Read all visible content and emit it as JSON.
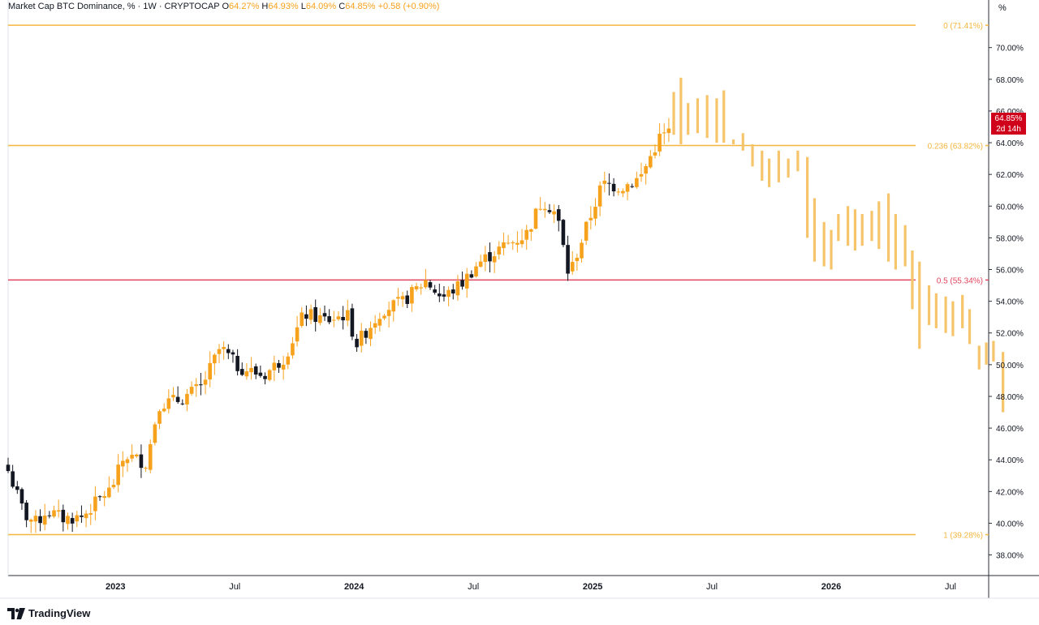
{
  "legend": {
    "title": "Market Cap BTC Dominance, % · 1W · CRYPTOCAP",
    "o_key": "O",
    "o_val": "64.27%",
    "h_key": "H",
    "h_val": "64.93%",
    "l_key": "L",
    "l_val": "64.09%",
    "c_key": "C",
    "c_val": "64.85%",
    "change": "+0.58 (+0.90%)"
  },
  "axis_unit": "%",
  "current": {
    "value": "64.85%",
    "countdown": "2d 14h"
  },
  "brand": "TradingView",
  "colors": {
    "up": "#f7a21c",
    "down": "#131722",
    "projection": "#f6c46a",
    "fib": "#f5b53f",
    "fib_mid": "#e0455b",
    "badge": "#d0021b",
    "grid": "#e0e3eb",
    "axis_text": "#131722"
  },
  "chart_data": {
    "type": "candlestick",
    "title": "Market Cap BTC Dominance, % · 1W · CRYPTOCAP",
    "ylim": [
      36.7,
      73.0
    ],
    "y_ticks": [
      "38.00%",
      "40.00%",
      "42.00%",
      "44.00%",
      "46.00%",
      "48.00%",
      "50.00%",
      "52.00%",
      "54.00%",
      "56.00%",
      "58.00%",
      "60.00%",
      "62.00%",
      "64.00%",
      "66.00%",
      "68.00%",
      "70.00%"
    ],
    "x_labels": [
      {
        "label": "2023",
        "t": 2023.0,
        "bold": true
      },
      {
        "label": "Jul",
        "t": 2023.5,
        "bold": false
      },
      {
        "label": "2024",
        "t": 2024.0,
        "bold": true
      },
      {
        "label": "Jul",
        "t": 2024.5,
        "bold": false
      },
      {
        "label": "2025",
        "t": 2025.0,
        "bold": true
      },
      {
        "label": "Jul",
        "t": 2025.5,
        "bold": false
      },
      {
        "label": "2026",
        "t": 2026.0,
        "bold": true
      },
      {
        "label": "Jul",
        "t": 2026.5,
        "bold": false
      }
    ],
    "xlim": [
      2022.55,
      2026.66
    ],
    "fib_levels": [
      {
        "label": "0 (71.41%)",
        "value": 71.41,
        "mid": false
      },
      {
        "label": "0.236 (63.82%)",
        "value": 63.82,
        "mid": false
      },
      {
        "label": "0.5 (55.34%)",
        "value": 55.34,
        "mid": true
      },
      {
        "label": "1 (39.28%)",
        "value": 39.28,
        "mid": false
      }
    ],
    "anchors": [
      [
        2022.55,
        43.3
      ],
      [
        2022.62,
        40.5
      ],
      [
        2022.67,
        40.0
      ],
      [
        2022.71,
        40.8
      ],
      [
        2022.78,
        40.3
      ],
      [
        2022.86,
        40.4
      ],
      [
        2022.95,
        41.8
      ],
      [
        2022.98,
        42.1
      ],
      [
        2023.04,
        44.3
      ],
      [
        2023.13,
        43.8
      ],
      [
        2023.18,
        47.5
      ],
      [
        2023.27,
        47.8
      ],
      [
        2023.36,
        48.6
      ],
      [
        2023.44,
        51.1
      ],
      [
        2023.51,
        49.9
      ],
      [
        2023.62,
        49.3
      ],
      [
        2023.71,
        50.5
      ],
      [
        2023.79,
        53.2
      ],
      [
        2023.89,
        52.8
      ],
      [
        2023.97,
        53.2
      ],
      [
        2024.01,
        51.3
      ],
      [
        2024.12,
        53.5
      ],
      [
        2024.2,
        53.9
      ],
      [
        2024.3,
        55.3
      ],
      [
        2024.37,
        54.2
      ],
      [
        2024.45,
        55.1
      ],
      [
        2024.52,
        56.4
      ],
      [
        2024.62,
        57.4
      ],
      [
        2024.72,
        58.2
      ],
      [
        2024.79,
        60.4
      ],
      [
        2024.85,
        59.5
      ],
      [
        2024.9,
        55.6
      ],
      [
        2024.97,
        58.5
      ],
      [
        2025.04,
        61.4
      ],
      [
        2025.12,
        61.2
      ],
      [
        2025.2,
        61.8
      ],
      [
        2025.28,
        64.3
      ],
      [
        2025.33,
        64.8
      ]
    ],
    "projection": [
      [
        2025.34,
        64.5,
        67.2
      ],
      [
        2025.37,
        63.9,
        68.1
      ],
      [
        2025.4,
        64.5,
        66.5
      ],
      [
        2025.44,
        64.6,
        66.8
      ],
      [
        2025.48,
        64.3,
        67.0
      ],
      [
        2025.52,
        64.0,
        66.8
      ],
      [
        2025.55,
        64.0,
        67.3
      ],
      [
        2025.59,
        63.9,
        64.2
      ],
      [
        2025.63,
        63.5,
        64.6
      ],
      [
        2025.67,
        62.5,
        63.9
      ],
      [
        2025.71,
        61.6,
        63.5
      ],
      [
        2025.74,
        61.2,
        63.0
      ],
      [
        2025.78,
        61.5,
        63.5
      ],
      [
        2025.82,
        61.8,
        63.0
      ],
      [
        2025.86,
        62.2,
        63.5
      ],
      [
        2025.9,
        58.0,
        63.1
      ],
      [
        2025.93,
        56.5,
        60.5
      ],
      [
        2025.97,
        56.2,
        59.0
      ],
      [
        2026.0,
        56.0,
        58.5
      ],
      [
        2026.03,
        57.8,
        59.5
      ],
      [
        2026.07,
        57.5,
        60.0
      ],
      [
        2026.1,
        57.2,
        59.8
      ],
      [
        2026.13,
        57.5,
        59.5
      ],
      [
        2026.17,
        57.8,
        59.7
      ],
      [
        2026.2,
        57.3,
        60.3
      ],
      [
        2026.24,
        56.5,
        60.8
      ],
      [
        2026.27,
        56.0,
        59.5
      ],
      [
        2026.31,
        56.2,
        58.8
      ],
      [
        2026.34,
        53.5,
        57.2
      ],
      [
        2026.37,
        51.0,
        56.5
      ],
      [
        2026.41,
        52.5,
        55.0
      ],
      [
        2026.44,
        52.3,
        54.5
      ],
      [
        2026.48,
        52.0,
        54.3
      ],
      [
        2026.51,
        51.8,
        54.0
      ],
      [
        2026.55,
        52.3,
        54.4
      ],
      [
        2026.58,
        51.3,
        53.5
      ],
      [
        2026.62,
        49.7,
        51.2
      ],
      [
        2026.65,
        50.0,
        51.4
      ],
      [
        2026.68,
        50.2,
        51.5
      ],
      [
        2026.72,
        47.0,
        50.8
      ]
    ]
  }
}
